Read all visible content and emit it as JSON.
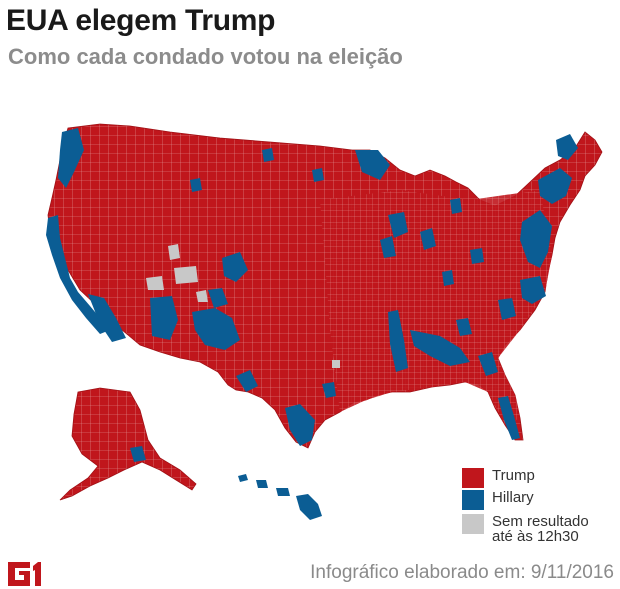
{
  "header": {
    "title": "EUA elegem Trump",
    "subtitle": "Como cada condado votou na eleição"
  },
  "colors": {
    "trump": "#c0161c",
    "hillary": "#0b5d94",
    "no_result": "#c8c8c8",
    "county_border": "#e8b0b0"
  },
  "legend": {
    "items": [
      {
        "label": "Trump",
        "color": "#c0161c"
      },
      {
        "label": "Hillary",
        "color": "#0b5d94"
      },
      {
        "label_line1": "Sem resultado",
        "label_line2": "até às 12h30",
        "color": "#c8c8c8"
      }
    ]
  },
  "footer": {
    "logo_text": "G1",
    "credit": "Infográfico elaborado em: 9/11/2016"
  }
}
